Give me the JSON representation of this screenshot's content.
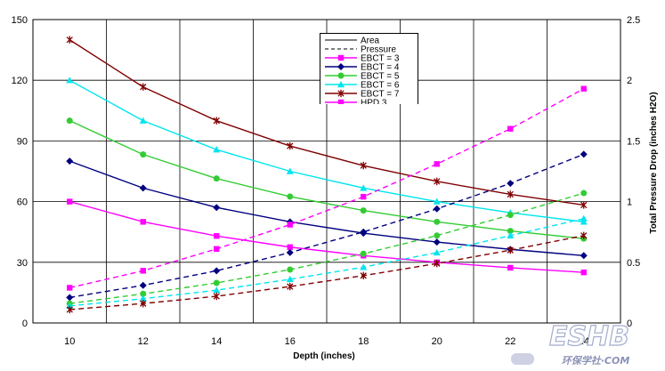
{
  "chart_data": {
    "type": "line",
    "xlabel": "Depth (inches)",
    "ylabel_right": "Total Pressure Drop (inches H2O)",
    "x": [
      10,
      12,
      14,
      16,
      18,
      20,
      22,
      24
    ],
    "x_ticks": [
      10,
      12,
      14,
      16,
      18,
      20,
      22,
      24
    ],
    "xlim": [
      9,
      25
    ],
    "ylim_left": [
      0,
      150
    ],
    "y_left_ticks": [
      0,
      30,
      60,
      90,
      120,
      150
    ],
    "ylim_right": [
      0,
      2.5
    ],
    "y_right_ticks": [
      "0",
      "0.5",
      "1",
      "1.5",
      "2",
      "2.5"
    ],
    "grid": true,
    "legend_position": "top-center",
    "legend": [
      {
        "label": "Area",
        "style": "solid",
        "color": "#000000"
      },
      {
        "label": "Pressure",
        "style": "dashed",
        "color": "#000000"
      },
      {
        "label": "EBCT = 3",
        "color": "#ff00ff",
        "marker": "square"
      },
      {
        "label": "EBCT = 4",
        "color": "#000080",
        "marker": "diamond"
      },
      {
        "label": "EBCT = 5",
        "color": "#33cc33",
        "marker": "circle"
      },
      {
        "label": "EBCT = 6",
        "color": "#00e5ee",
        "marker": "triangle"
      },
      {
        "label": "EBCT = 7",
        "color": "#800000",
        "marker": "star"
      },
      {
        "label": "HPD 3",
        "color": "#ff00ff",
        "marker": "square"
      }
    ],
    "series": [
      {
        "name": "EBCT = 3",
        "color": "#ff00ff",
        "marker": "square",
        "style": "solid",
        "axis": "left",
        "values": [
          60,
          50,
          43,
          37.5,
          33.3,
          30,
          27.3,
          25
        ]
      },
      {
        "name": "EBCT = 4",
        "color": "#000080",
        "marker": "diamond",
        "style": "solid",
        "axis": "left",
        "values": [
          80,
          66.7,
          57.1,
          50,
          44.4,
          40,
          36.4,
          33.3
        ]
      },
      {
        "name": "EBCT = 5",
        "color": "#33cc33",
        "marker": "circle",
        "style": "solid",
        "axis": "left",
        "values": [
          100,
          83.3,
          71.4,
          62.5,
          55.6,
          50,
          45.5,
          41.7
        ]
      },
      {
        "name": "EBCT = 6",
        "color": "#00e5ee",
        "marker": "triangle",
        "style": "solid",
        "axis": "left",
        "values": [
          120,
          100,
          85.7,
          75,
          66.7,
          60,
          54.5,
          50
        ]
      },
      {
        "name": "EBCT = 7",
        "color": "#800000",
        "marker": "star",
        "style": "solid",
        "axis": "left",
        "values": [
          140,
          116.7,
          100,
          87.5,
          77.8,
          70,
          63.6,
          58.3
        ]
      },
      {
        "name": "EBCT = 3",
        "color": "#ff00ff",
        "marker": "square",
        "style": "dashed",
        "axis": "right",
        "values": [
          0.29,
          0.43,
          0.61,
          0.81,
          1.04,
          1.31,
          1.6,
          1.93
        ]
      },
      {
        "name": "EBCT = 4",
        "color": "#000080",
        "marker": "diamond",
        "style": "dashed",
        "axis": "right",
        "values": [
          0.21,
          0.31,
          0.43,
          0.58,
          0.75,
          0.94,
          1.15,
          1.39
        ]
      },
      {
        "name": "EBCT = 5",
        "color": "#33cc33",
        "marker": "circle",
        "style": "dashed",
        "axis": "right",
        "values": [
          0.16,
          0.24,
          0.33,
          0.44,
          0.57,
          0.72,
          0.89,
          1.07
        ]
      },
      {
        "name": "EBCT = 6",
        "color": "#00e5ee",
        "marker": "triangle",
        "style": "dashed",
        "axis": "right",
        "values": [
          0.14,
          0.2,
          0.27,
          0.36,
          0.46,
          0.58,
          0.72,
          0.86
        ]
      },
      {
        "name": "EBCT = 7",
        "color": "#800000",
        "marker": "star",
        "style": "dashed",
        "axis": "right",
        "values": [
          0.11,
          0.16,
          0.22,
          0.3,
          0.39,
          0.49,
          0.6,
          0.72
        ]
      }
    ]
  },
  "watermark": {
    "main": "ESHB",
    "sub": "环保学社·COM"
  }
}
